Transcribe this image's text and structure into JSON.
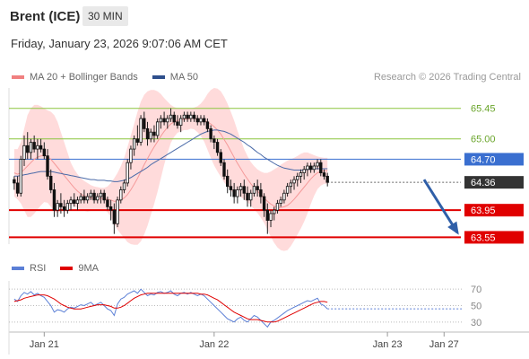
{
  "header": {
    "title": "Brent (ICE)",
    "timeframe": "30 MIN",
    "datetime": "Friday, January 23, 2026 9:07:06 AM CET"
  },
  "legend": {
    "items": [
      {
        "label": "MA 20 + Bollinger Bands",
        "color": "#f08080"
      },
      {
        "label": "MA 50",
        "color": "#2e4f8c"
      }
    ],
    "source": "Research © 2026 Trading Central"
  },
  "rsi_legend": {
    "items": [
      {
        "label": "RSI",
        "color": "#5b7fd6"
      },
      {
        "label": "9MA",
        "color": "#e00000"
      }
    ]
  },
  "colors": {
    "up": "#0a0a0a",
    "down": "#0a0a0a",
    "band": "#ffd5d5",
    "ma20": "#f59a9a",
    "ma50": "#4a6aa8",
    "green_level": "#8cc63f",
    "blue_level": "#3a6fd0",
    "red_level": "#e00000",
    "arrow": "#2f5fa8",
    "last_price": "#333333"
  },
  "chart_data": [
    {
      "type": "candlestick",
      "title": "Brent (ICE)",
      "ylim": [
        63.45,
        65.75
      ],
      "x_ticks": [
        "Jan 21",
        "Jan 22",
        "Jan 23",
        "Jan 27"
      ],
      "x_tick_positions": [
        9,
        60,
        112,
        129
      ],
      "y_levels": [
        {
          "value": 65.45,
          "label": "65.45",
          "style": "green"
        },
        {
          "value": 65.0,
          "label": "65.00",
          "style": "green"
        },
        {
          "value": 64.7,
          "label": "64.70",
          "style": "blue"
        },
        {
          "value": 64.36,
          "label": "64.36",
          "style": "last"
        },
        {
          "value": 63.95,
          "label": "63.95",
          "style": "red"
        },
        {
          "value": 63.55,
          "label": "63.55",
          "style": "red"
        }
      ],
      "forecast_arrow": {
        "from_index": 123,
        "from_value": 64.4,
        "to_index": 133,
        "to_value": 63.62
      },
      "candles": [
        [
          64.4,
          64.45,
          64.25,
          64.35
        ],
        [
          64.35,
          64.45,
          64.15,
          64.2
        ],
        [
          64.2,
          64.75,
          64.15,
          64.7
        ],
        [
          64.7,
          65.05,
          64.6,
          64.9
        ],
        [
          64.9,
          65.1,
          64.7,
          64.8
        ],
        [
          64.8,
          65.0,
          64.7,
          64.95
        ],
        [
          64.95,
          65.05,
          64.8,
          64.85
        ],
        [
          64.85,
          65.0,
          64.7,
          64.9
        ],
        [
          64.9,
          65.0,
          64.8,
          64.85
        ],
        [
          64.85,
          64.95,
          64.7,
          64.75
        ],
        [
          64.75,
          64.85,
          64.4,
          64.45
        ],
        [
          64.45,
          64.55,
          64.2,
          64.25
        ],
        [
          64.25,
          64.35,
          63.85,
          63.95
        ],
        [
          63.95,
          64.1,
          63.85,
          64.05
        ],
        [
          64.05,
          64.2,
          63.9,
          64.0
        ],
        [
          64.0,
          64.1,
          63.85,
          63.95
        ],
        [
          63.95,
          64.1,
          63.9,
          64.05
        ],
        [
          64.05,
          64.15,
          63.95,
          64.1
        ],
        [
          64.1,
          64.2,
          64.0,
          64.05
        ],
        [
          64.05,
          64.15,
          63.95,
          64.1
        ],
        [
          64.1,
          64.2,
          64.05,
          64.15
        ],
        [
          64.15,
          64.25,
          64.05,
          64.1
        ],
        [
          64.1,
          64.2,
          64.05,
          64.15
        ],
        [
          64.15,
          64.25,
          64.1,
          64.2
        ],
        [
          64.2,
          64.25,
          64.05,
          64.1
        ],
        [
          64.1,
          64.2,
          64.05,
          64.15
        ],
        [
          64.15,
          64.25,
          64.05,
          64.2
        ],
        [
          64.2,
          64.25,
          64.05,
          64.1
        ],
        [
          64.1,
          64.15,
          63.95,
          64.0
        ],
        [
          64.0,
          64.1,
          63.8,
          63.95
        ],
        [
          63.95,
          64.05,
          63.6,
          63.75
        ],
        [
          63.75,
          64.15,
          63.7,
          64.1
        ],
        [
          64.1,
          64.3,
          64.05,
          64.25
        ],
        [
          64.25,
          64.4,
          64.2,
          64.35
        ],
        [
          64.35,
          64.7,
          64.3,
          64.65
        ],
        [
          64.65,
          64.9,
          64.55,
          64.85
        ],
        [
          64.85,
          65.05,
          64.75,
          65.0
        ],
        [
          65.0,
          65.2,
          64.9,
          64.95
        ],
        [
          64.95,
          65.35,
          64.9,
          65.3
        ],
        [
          65.3,
          65.4,
          65.1,
          65.15
        ],
        [
          65.15,
          65.25,
          64.9,
          65.0
        ],
        [
          65.0,
          65.15,
          64.95,
          65.1
        ],
        [
          65.1,
          65.2,
          64.95,
          65.05
        ],
        [
          65.05,
          65.3,
          65.0,
          65.25
        ],
        [
          65.25,
          65.35,
          65.15,
          65.3
        ],
        [
          65.3,
          65.4,
          65.2,
          65.25
        ],
        [
          65.25,
          65.35,
          65.15,
          65.3
        ],
        [
          65.3,
          65.45,
          65.25,
          65.35
        ],
        [
          65.35,
          65.4,
          65.2,
          65.25
        ],
        [
          65.25,
          65.35,
          65.15,
          65.2
        ],
        [
          65.2,
          65.35,
          65.1,
          65.3
        ],
        [
          65.3,
          65.4,
          65.25,
          65.35
        ],
        [
          65.35,
          65.4,
          65.25,
          65.3
        ],
        [
          65.3,
          65.4,
          65.25,
          65.35
        ],
        [
          65.35,
          65.4,
          65.25,
          65.3
        ],
        [
          65.3,
          65.35,
          65.2,
          65.25
        ],
        [
          65.25,
          65.35,
          65.2,
          65.3
        ],
        [
          65.3,
          65.35,
          65.2,
          65.25
        ],
        [
          65.25,
          65.3,
          65.1,
          65.15
        ],
        [
          65.15,
          65.2,
          64.95,
          65.0
        ],
        [
          65.0,
          65.05,
          64.85,
          64.95
        ],
        [
          64.95,
          65.0,
          64.75,
          64.8
        ],
        [
          64.8,
          64.85,
          64.6,
          64.65
        ],
        [
          64.65,
          64.7,
          64.4,
          64.45
        ],
        [
          64.45,
          64.55,
          64.2,
          64.3
        ],
        [
          64.3,
          64.4,
          64.15,
          64.25
        ],
        [
          64.25,
          64.35,
          64.05,
          64.15
        ],
        [
          64.15,
          64.3,
          64.05,
          64.25
        ],
        [
          64.25,
          64.35,
          64.15,
          64.3
        ],
        [
          64.3,
          64.4,
          64.1,
          64.2
        ],
        [
          64.2,
          64.3,
          64.0,
          64.1
        ],
        [
          64.1,
          64.25,
          64.0,
          64.2
        ],
        [
          64.2,
          64.35,
          64.15,
          64.3
        ],
        [
          64.3,
          64.4,
          64.15,
          64.25
        ],
        [
          64.25,
          64.35,
          64.05,
          64.15
        ],
        [
          64.15,
          64.2,
          63.85,
          63.95
        ],
        [
          63.95,
          64.05,
          63.6,
          63.8
        ],
        [
          63.8,
          63.95,
          63.7,
          63.9
        ],
        [
          63.9,
          64.0,
          63.8,
          63.95
        ],
        [
          63.95,
          64.1,
          63.9,
          64.05
        ],
        [
          64.05,
          64.15,
          64.0,
          64.1
        ],
        [
          64.1,
          64.25,
          64.05,
          64.2
        ],
        [
          64.2,
          64.35,
          64.15,
          64.3
        ],
        [
          64.3,
          64.4,
          64.2,
          64.35
        ],
        [
          64.35,
          64.45,
          64.25,
          64.4
        ],
        [
          64.4,
          64.5,
          64.3,
          64.45
        ],
        [
          64.45,
          64.55,
          64.35,
          64.5
        ],
        [
          64.5,
          64.6,
          64.4,
          64.55
        ],
        [
          64.55,
          64.65,
          64.45,
          64.6
        ],
        [
          64.6,
          64.65,
          64.5,
          64.55
        ],
        [
          64.55,
          64.65,
          64.5,
          64.6
        ],
        [
          64.6,
          64.7,
          64.55,
          64.65
        ],
        [
          64.65,
          64.7,
          64.45,
          64.5
        ],
        [
          64.5,
          64.55,
          64.4,
          64.45
        ],
        [
          64.45,
          64.5,
          64.3,
          64.36
        ]
      ],
      "ma20": [
        64.5,
        64.48,
        64.5,
        64.55,
        64.6,
        64.65,
        64.7,
        64.73,
        64.75,
        64.76,
        64.74,
        64.7,
        64.64,
        64.58,
        64.52,
        64.46,
        64.4,
        64.34,
        64.28,
        64.23,
        64.19,
        64.16,
        64.14,
        64.13,
        64.12,
        64.12,
        64.12,
        64.12,
        64.11,
        64.1,
        64.08,
        64.08,
        64.1,
        64.13,
        64.18,
        64.25,
        64.33,
        64.42,
        64.52,
        64.62,
        64.71,
        64.8,
        64.88,
        64.96,
        65.04,
        65.11,
        65.17,
        65.22,
        65.25,
        65.27,
        65.28,
        65.29,
        65.29,
        65.3,
        65.3,
        65.29,
        65.28,
        65.27,
        65.25,
        65.22,
        65.18,
        65.13,
        65.07,
        64.99,
        64.91,
        64.82,
        64.73,
        64.64,
        64.56,
        64.48,
        64.41,
        64.34,
        64.28,
        64.23,
        64.18,
        64.13,
        64.08,
        64.04,
        64.01,
        63.99,
        63.99,
        64.0,
        64.02,
        64.06,
        64.11,
        64.17,
        64.23,
        64.29,
        64.35,
        64.41,
        64.46,
        64.5,
        64.52,
        64.53,
        64.53
      ],
      "ma50": [
        64.45,
        64.45,
        64.46,
        64.47,
        64.48,
        64.49,
        64.5,
        64.51,
        64.52,
        64.52,
        64.52,
        64.52,
        64.51,
        64.5,
        64.49,
        64.48,
        64.47,
        64.46,
        64.45,
        64.44,
        64.43,
        64.42,
        64.41,
        64.4,
        64.4,
        64.39,
        64.39,
        64.39,
        64.38,
        64.38,
        64.37,
        64.37,
        64.38,
        64.39,
        64.41,
        64.43,
        64.46,
        64.49,
        64.52,
        64.55,
        64.58,
        64.62,
        64.65,
        64.68,
        64.71,
        64.74,
        64.77,
        64.8,
        64.83,
        64.86,
        64.89,
        64.92,
        64.95,
        64.98,
        65.01,
        65.04,
        65.07,
        65.09,
        65.11,
        65.12,
        65.13,
        65.13,
        65.12,
        65.11,
        65.09,
        65.07,
        65.04,
        65.01,
        64.98,
        64.95,
        64.91,
        64.88,
        64.84,
        64.8,
        64.77,
        64.73,
        64.7,
        64.67,
        64.64,
        64.61,
        64.59,
        64.57,
        64.56,
        64.55,
        64.54,
        64.54,
        64.54,
        64.54,
        64.55,
        64.55,
        64.56,
        64.56,
        64.56,
        64.56,
        64.56
      ],
      "bb_upper": [
        64.85,
        64.85,
        64.95,
        65.15,
        65.35,
        65.45,
        65.5,
        65.5,
        65.48,
        65.45,
        65.42,
        65.4,
        65.35,
        65.25,
        65.1,
        64.95,
        64.8,
        64.65,
        64.55,
        64.48,
        64.42,
        64.38,
        64.35,
        64.32,
        64.3,
        64.29,
        64.28,
        64.28,
        64.3,
        64.35,
        64.42,
        64.5,
        64.6,
        64.72,
        64.88,
        65.05,
        65.22,
        65.4,
        65.55,
        65.65,
        65.7,
        65.72,
        65.72,
        65.7,
        65.66,
        65.6,
        65.55,
        65.5,
        65.47,
        65.45,
        65.45,
        65.45,
        65.45,
        65.45,
        65.46,
        65.48,
        65.52,
        65.58,
        65.66,
        65.72,
        65.75,
        65.74,
        65.7,
        65.62,
        65.52,
        65.4,
        65.27,
        65.12,
        64.98,
        64.85,
        64.75,
        64.66,
        64.6,
        64.55,
        64.52,
        64.5,
        64.5,
        64.52,
        64.55,
        64.58,
        64.62,
        64.65,
        64.68,
        64.7,
        64.72,
        64.75,
        64.78,
        64.8,
        64.8,
        64.78,
        64.76,
        64.74,
        64.73,
        64.72,
        64.72
      ],
      "bb_lower": [
        64.15,
        64.11,
        64.05,
        63.95,
        63.85,
        63.85,
        63.9,
        63.96,
        64.02,
        64.07,
        64.06,
        64.0,
        63.93,
        63.91,
        63.94,
        63.97,
        64.0,
        64.03,
        64.01,
        63.98,
        63.96,
        63.94,
        63.93,
        63.94,
        63.94,
        63.95,
        63.96,
        63.96,
        63.92,
        63.85,
        63.74,
        63.66,
        63.6,
        63.54,
        63.48,
        63.45,
        63.44,
        63.44,
        63.49,
        63.59,
        63.72,
        63.88,
        64.04,
        64.22,
        64.42,
        64.62,
        64.79,
        64.94,
        65.03,
        65.09,
        65.11,
        65.13,
        65.13,
        65.15,
        65.14,
        65.1,
        65.04,
        64.96,
        64.84,
        64.72,
        64.61,
        64.52,
        64.44,
        64.36,
        64.3,
        64.24,
        64.19,
        64.16,
        64.14,
        64.11,
        64.07,
        64.02,
        63.96,
        63.91,
        63.84,
        63.76,
        63.66,
        63.56,
        63.47,
        63.4,
        63.36,
        63.35,
        63.36,
        63.42,
        63.5,
        63.59,
        63.68,
        63.78,
        63.9,
        64.04,
        64.16,
        64.26,
        64.31,
        64.34,
        64.34
      ]
    },
    {
      "type": "line",
      "title": "RSI",
      "ylim": [
        20,
        80
      ],
      "y_ticks": [
        70,
        50,
        30
      ],
      "series": [
        {
          "name": "RSI",
          "color": "#5b7fd6",
          "values": [
            58,
            55,
            62,
            66,
            64,
            67,
            63,
            65,
            62,
            60,
            55,
            50,
            42,
            45,
            44,
            42,
            46,
            48,
            47,
            49,
            51,
            50,
            52,
            54,
            50,
            52,
            54,
            50,
            46,
            44,
            38,
            52,
            58,
            60,
            64,
            66,
            68,
            65,
            70,
            66,
            62,
            64,
            63,
            66,
            67,
            65,
            66,
            68,
            64,
            62,
            65,
            66,
            64,
            66,
            64,
            62,
            64,
            62,
            58,
            54,
            50,
            46,
            42,
            38,
            34,
            32,
            30,
            34,
            36,
            32,
            30,
            34,
            38,
            36,
            32,
            28,
            24,
            30,
            32,
            35,
            38,
            41,
            44,
            46,
            48,
            50,
            52,
            54,
            56,
            55,
            57,
            59,
            52,
            50,
            46
          ]
        },
        {
          "name": "9MA",
          "color": "#e00000",
          "values": [
            55,
            56,
            57,
            59,
            60,
            61,
            62,
            63,
            63,
            63,
            62,
            60,
            58,
            55,
            52,
            50,
            48,
            47,
            46,
            46,
            46,
            47,
            48,
            49,
            50,
            51,
            51,
            51,
            50,
            49,
            47,
            47,
            48,
            50,
            53,
            56,
            59,
            61,
            63,
            64,
            65,
            65,
            65,
            65,
            65,
            65,
            65,
            65,
            65,
            65,
            65,
            65,
            65,
            65,
            65,
            65,
            64,
            64,
            63,
            61,
            59,
            57,
            54,
            51,
            48,
            45,
            42,
            40,
            38,
            36,
            34,
            33,
            33,
            33,
            32,
            31,
            30,
            30,
            30,
            31,
            33,
            35,
            37,
            39,
            41,
            43,
            45,
            47,
            49,
            51,
            53,
            54,
            55,
            55,
            54
          ]
        }
      ]
    }
  ],
  "axis_labels": {
    "price": [
      "65.45",
      "65.00",
      "64.70",
      "64.36",
      "63.95",
      "63.55"
    ],
    "rsi": [
      "70",
      "50",
      "30"
    ],
    "dates": [
      "Jan 21",
      "Jan 22",
      "Jan 23",
      "Jan 27"
    ]
  }
}
